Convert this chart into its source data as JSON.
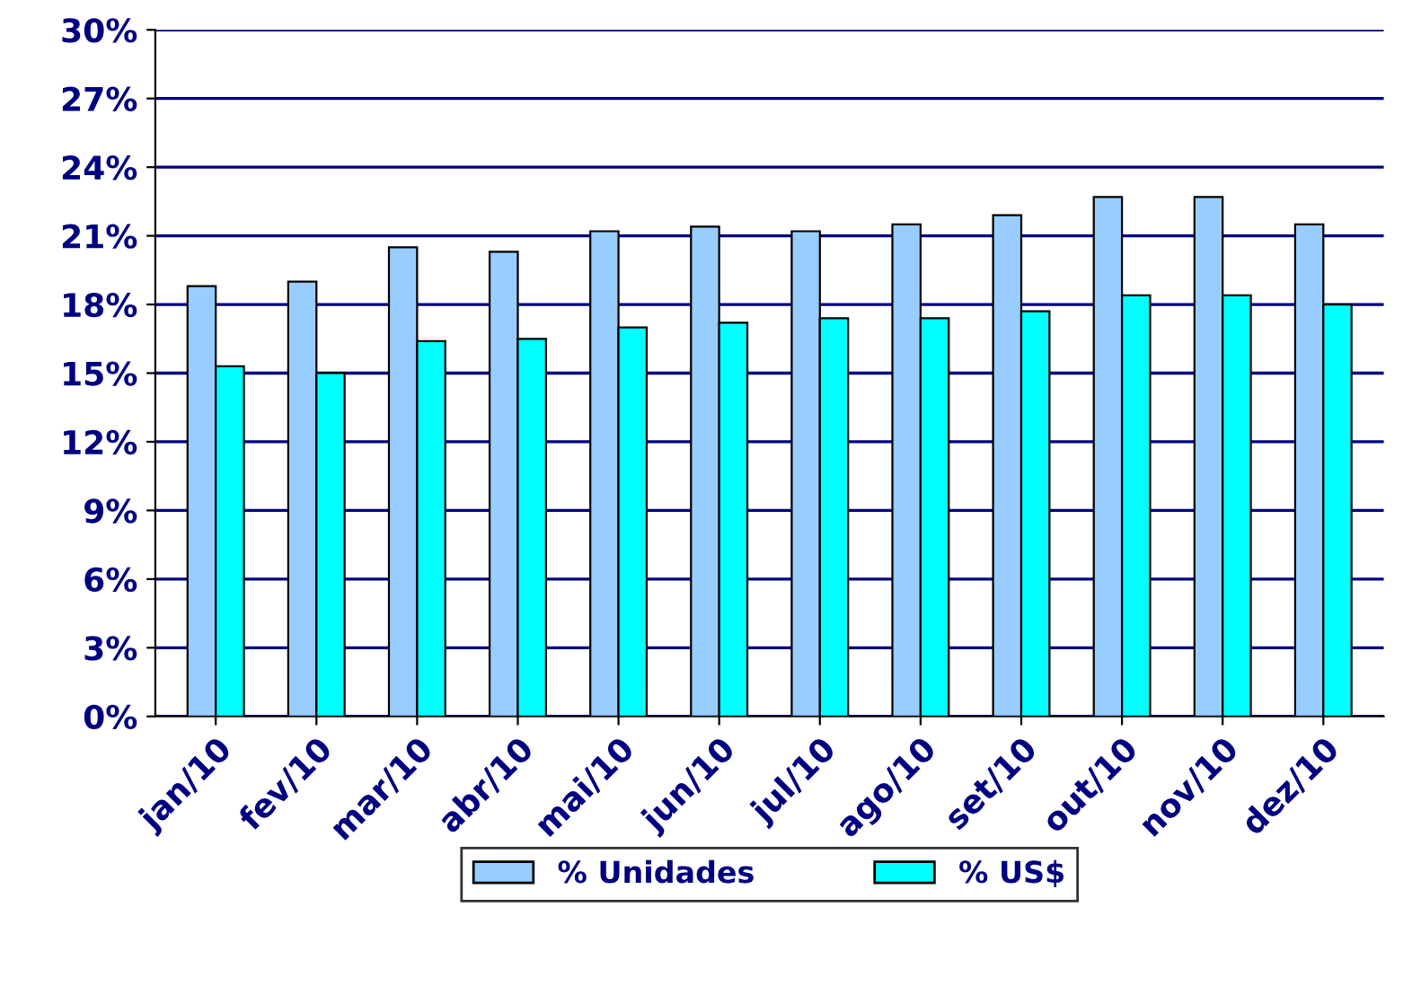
{
  "chart_data": {
    "type": "bar",
    "categories": [
      "jan/10",
      "fev/10",
      "mar/10",
      "abr/10",
      "mai/10",
      "jun/10",
      "jul/10",
      "ago/10",
      "set/10",
      "out/10",
      "nov/10",
      "dez/10"
    ],
    "series": [
      {
        "name": "% Unidades",
        "color": "#99ccff",
        "values": [
          18.8,
          19.0,
          20.5,
          20.3,
          21.2,
          21.4,
          21.2,
          21.5,
          21.9,
          22.7,
          22.7,
          21.5
        ]
      },
      {
        "name": "% US$",
        "color": "#00ffff",
        "values": [
          15.3,
          15.0,
          16.4,
          16.5,
          17.0,
          17.2,
          17.4,
          17.4,
          17.7,
          18.4,
          18.4,
          18.0
        ]
      }
    ],
    "ylim": [
      0,
      30
    ],
    "yticks": [
      {
        "value": 0,
        "label": "0%"
      },
      {
        "value": 3,
        "label": "3%"
      },
      {
        "value": 6,
        "label": "6%"
      },
      {
        "value": 9,
        "label": "9%"
      },
      {
        "value": 12,
        "label": "12%"
      },
      {
        "value": 15,
        "label": "15%"
      },
      {
        "value": 18,
        "label": "18%"
      },
      {
        "value": 21,
        "label": "21%"
      },
      {
        "value": 24,
        "label": "24%"
      },
      {
        "value": 27,
        "label": "27%"
      },
      {
        "value": 30,
        "label": "30%"
      }
    ],
    "grid": "y",
    "legend": "bottom"
  }
}
